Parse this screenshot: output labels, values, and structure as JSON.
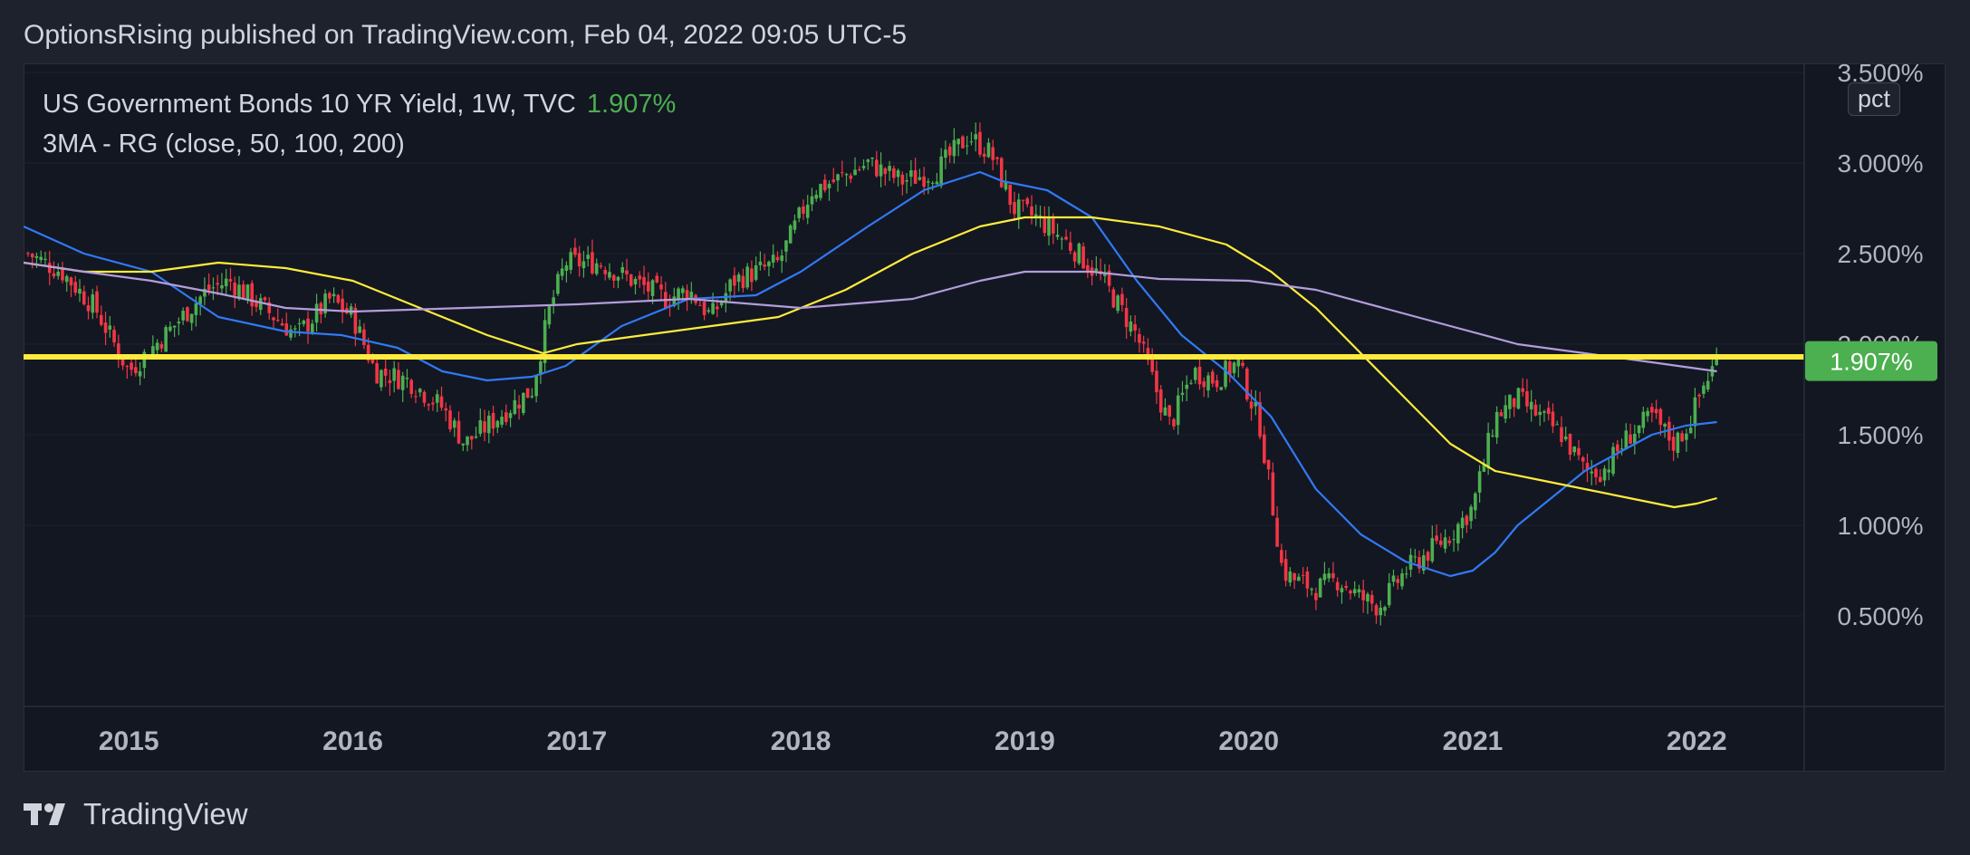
{
  "header": {
    "publish_text": "OptionsRising published on TradingView.com, Feb 04, 2022 09:05 UTC-5"
  },
  "legend": {
    "symbol_line": "US Government Bonds 10 YR Yield, 1W, TVC",
    "last_value": "1.907%",
    "indicator_line": "3MA - RG (close, 50, 100, 200)"
  },
  "scale_badge": "pct",
  "price_label": "1.907%",
  "footer": {
    "brand": "TradingView"
  },
  "colors": {
    "background": "#131722",
    "up": "#4caf50",
    "down": "#f23645",
    "ma50": "#3179f5",
    "ma100": "#ffeb3b",
    "ma200": "#b39ddb",
    "level_line": "#ffeb3b",
    "axis_text": "#b2b5be"
  },
  "chart_data": {
    "type": "line",
    "series_type": "candlestick",
    "interval": "1W",
    "y_unit": "%",
    "ylim": [
      0.0,
      3.55
    ],
    "xlim": [
      2014.53,
      2022.48
    ],
    "y_ticks": [
      3.5,
      3.0,
      2.5,
      2.0,
      1.5,
      1.0,
      0.5
    ],
    "y_tick_labels": [
      "3.500%",
      "3.000%",
      "2.500%",
      "2.000%",
      "1.500%",
      "1.000%",
      "0.500%"
    ],
    "x_ticks": [
      2015,
      2016,
      2017,
      2018,
      2019,
      2020,
      2021,
      2022
    ],
    "x_tick_labels": [
      "2015",
      "2016",
      "2017",
      "2018",
      "2019",
      "2020",
      "2021",
      "2022"
    ],
    "last_value": 1.907,
    "horizontal_level": 1.93,
    "price_series": {
      "x": [
        2014.55,
        2014.7,
        2014.85,
        2015.0,
        2015.08,
        2015.2,
        2015.35,
        2015.45,
        2015.6,
        2015.75,
        2015.9,
        2016.0,
        2016.1,
        2016.25,
        2016.4,
        2016.5,
        2016.65,
        2016.8,
        2016.88,
        2016.95,
        2017.1,
        2017.25,
        2017.4,
        2017.5,
        2017.6,
        2017.7,
        2017.8,
        2017.9,
        2018.05,
        2018.15,
        2018.3,
        2018.45,
        2018.6,
        2018.75,
        2018.85,
        2018.95,
        2019.05,
        2019.2,
        2019.35,
        2019.5,
        2019.6,
        2019.65,
        2019.75,
        2019.85,
        2019.95,
        2020.05,
        2020.12,
        2020.15,
        2020.2,
        2020.3,
        2020.4,
        2020.5,
        2020.58,
        2020.7,
        2020.8,
        2020.9,
        2021.0,
        2021.1,
        2021.2,
        2021.3,
        2021.4,
        2021.5,
        2021.58,
        2021.7,
        2021.8,
        2021.9,
        2021.96,
        2022.04,
        2022.09
      ],
      "y": [
        2.5,
        2.4,
        2.2,
        1.85,
        1.95,
        2.1,
        2.3,
        2.35,
        2.2,
        2.05,
        2.25,
        2.15,
        1.85,
        1.8,
        1.65,
        1.45,
        1.6,
        1.75,
        2.2,
        2.45,
        2.45,
        2.35,
        2.25,
        2.3,
        2.15,
        2.35,
        2.4,
        2.45,
        2.85,
        2.9,
        3.0,
        2.9,
        2.95,
        3.15,
        3.05,
        2.75,
        2.7,
        2.55,
        2.35,
        2.05,
        1.7,
        1.55,
        1.85,
        1.8,
        1.9,
        1.55,
        1.0,
        0.75,
        0.7,
        0.65,
        0.7,
        0.6,
        0.55,
        0.75,
        0.85,
        0.95,
        1.1,
        1.6,
        1.7,
        1.6,
        1.5,
        1.3,
        1.3,
        1.5,
        1.6,
        1.45,
        1.55,
        1.8,
        1.907
      ]
    },
    "series": [
      {
        "name": "MA 50",
        "x": [
          2014.53,
          2014.8,
          2015.1,
          2015.4,
          2015.7,
          2015.95,
          2016.2,
          2016.4,
          2016.6,
          2016.8,
          2016.95,
          2017.2,
          2017.5,
          2017.8,
          2018.0,
          2018.3,
          2018.55,
          2018.8,
          2018.9,
          2019.1,
          2019.3,
          2019.5,
          2019.7,
          2019.9,
          2020.1,
          2020.3,
          2020.5,
          2020.7,
          2020.9,
          2021.0,
          2021.1,
          2021.2,
          2021.35,
          2021.5,
          2021.65,
          2021.8,
          2021.95,
          2022.09
        ],
        "y": [
          2.65,
          2.5,
          2.4,
          2.15,
          2.07,
          2.05,
          1.98,
          1.85,
          1.8,
          1.82,
          1.88,
          2.1,
          2.25,
          2.27,
          2.4,
          2.65,
          2.85,
          2.95,
          2.9,
          2.85,
          2.7,
          2.35,
          2.05,
          1.85,
          1.6,
          1.2,
          0.95,
          0.8,
          0.72,
          0.75,
          0.85,
          1.0,
          1.15,
          1.3,
          1.4,
          1.5,
          1.55,
          1.57
        ]
      },
      {
        "name": "MA 100",
        "x": [
          2014.53,
          2014.8,
          2015.1,
          2015.4,
          2015.7,
          2016.0,
          2016.3,
          2016.6,
          2016.85,
          2017.0,
          2017.3,
          2017.6,
          2017.9,
          2018.2,
          2018.5,
          2018.8,
          2019.0,
          2019.3,
          2019.6,
          2019.9,
          2020.1,
          2020.3,
          2020.5,
          2020.7,
          2020.9,
          2021.1,
          2021.3,
          2021.5,
          2021.7,
          2021.9,
          2022.0,
          2022.09
        ],
        "y": [
          2.45,
          2.4,
          2.4,
          2.45,
          2.42,
          2.35,
          2.2,
          2.05,
          1.95,
          2.0,
          2.05,
          2.1,
          2.15,
          2.3,
          2.5,
          2.65,
          2.7,
          2.7,
          2.65,
          2.55,
          2.4,
          2.2,
          1.95,
          1.7,
          1.45,
          1.3,
          1.25,
          1.2,
          1.15,
          1.1,
          1.12,
          1.15
        ]
      },
      {
        "name": "MA 200",
        "x": [
          2014.53,
          2014.8,
          2015.1,
          2015.4,
          2015.7,
          2016.0,
          2016.5,
          2017.0,
          2017.5,
          2018.0,
          2018.5,
          2018.8,
          2019.0,
          2019.3,
          2019.6,
          2020.0,
          2020.3,
          2020.6,
          2020.9,
          2021.2,
          2021.5,
          2021.8,
          2022.09
        ],
        "y": [
          2.45,
          2.4,
          2.35,
          2.28,
          2.2,
          2.18,
          2.2,
          2.22,
          2.25,
          2.2,
          2.25,
          2.35,
          2.4,
          2.4,
          2.36,
          2.35,
          2.3,
          2.2,
          2.1,
          2.0,
          1.95,
          1.9,
          1.85
        ]
      }
    ]
  }
}
